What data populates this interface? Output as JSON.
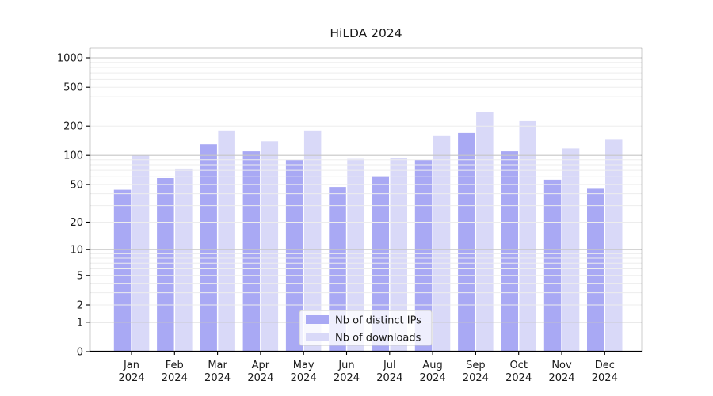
{
  "chart_data": {
    "type": "bar",
    "title": "HiLDA 2024",
    "categories": [
      "Jan",
      "Feb",
      "Mar",
      "Apr",
      "May",
      "Jun",
      "Jul",
      "Aug",
      "Sep",
      "Oct",
      "Nov",
      "Dec"
    ],
    "x_tick_year": "2024",
    "series": [
      {
        "name": "Nb of distinct IPs",
        "color": "#a9a9f4",
        "values": [
          44,
          58,
          130,
          110,
          90,
          47,
          61,
          90,
          170,
          110,
          56,
          45
        ]
      },
      {
        "name": "Nb of downloads",
        "color": "#d9d9f8",
        "values": [
          100,
          73,
          180,
          140,
          180,
          92,
          94,
          158,
          280,
          225,
          118,
          145
        ]
      }
    ],
    "xlabel": "",
    "ylabel": "",
    "y_axis": {
      "scale": "symlog",
      "ticks": [
        1000,
        500,
        200,
        100,
        50,
        20,
        10,
        5,
        2,
        1,
        0
      ],
      "ylim": [
        0,
        1280
      ],
      "major_grid_at": [
        1,
        10,
        100,
        1000
      ]
    },
    "grid": true,
    "legend": {
      "labels": [
        "Nb of distinct IPs",
        "Nb of downloads"
      ],
      "position": "lower center"
    }
  },
  "colors": {
    "background": "#ffffff",
    "spine": "#000000",
    "major_grid": "#c6c6c6",
    "minor_grid": "#ededed",
    "legend_border": "#cccccc",
    "text": "#1a1a1a"
  }
}
